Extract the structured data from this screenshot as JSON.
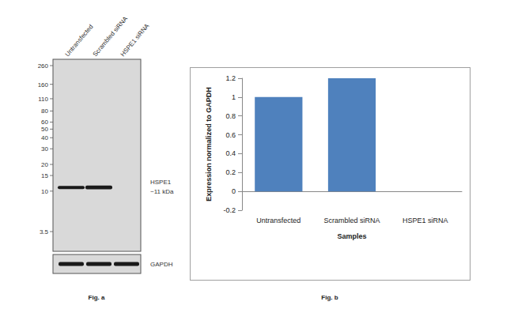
{
  "chart_data": {
    "type": "bar",
    "title": "Fig. b",
    "x_label": "Samples",
    "y_label": "Expression normalized to GAPDH",
    "categories": [
      "Untransfected",
      "Scrambled siRNA",
      "HSPE1 siRNA"
    ],
    "values": [
      1,
      1.2,
      0
    ],
    "color": "#4f81bd",
    "ylim": [
      -0.2,
      1.2
    ],
    "yticks": [
      -0.2,
      0,
      0.2,
      0.4,
      0.6,
      0.8,
      1,
      1.2
    ],
    "grid": false
  },
  "blot": {
    "title": "Fig. a",
    "lanes": [
      "Untransfected",
      "Scrambled siRNA",
      "HSPE1 siRNA"
    ],
    "markers": [
      260,
      160,
      110,
      80,
      60,
      50,
      40,
      30,
      20,
      15,
      10,
      3.5
    ],
    "bands": [
      {
        "label": "HSPE1",
        "sublabel": "~11 kDa",
        "kda": 11,
        "intensity": [
          1,
          1.2,
          0
        ]
      },
      {
        "label": "GAPDH",
        "intensity": [
          1,
          1,
          1
        ]
      }
    ]
  }
}
